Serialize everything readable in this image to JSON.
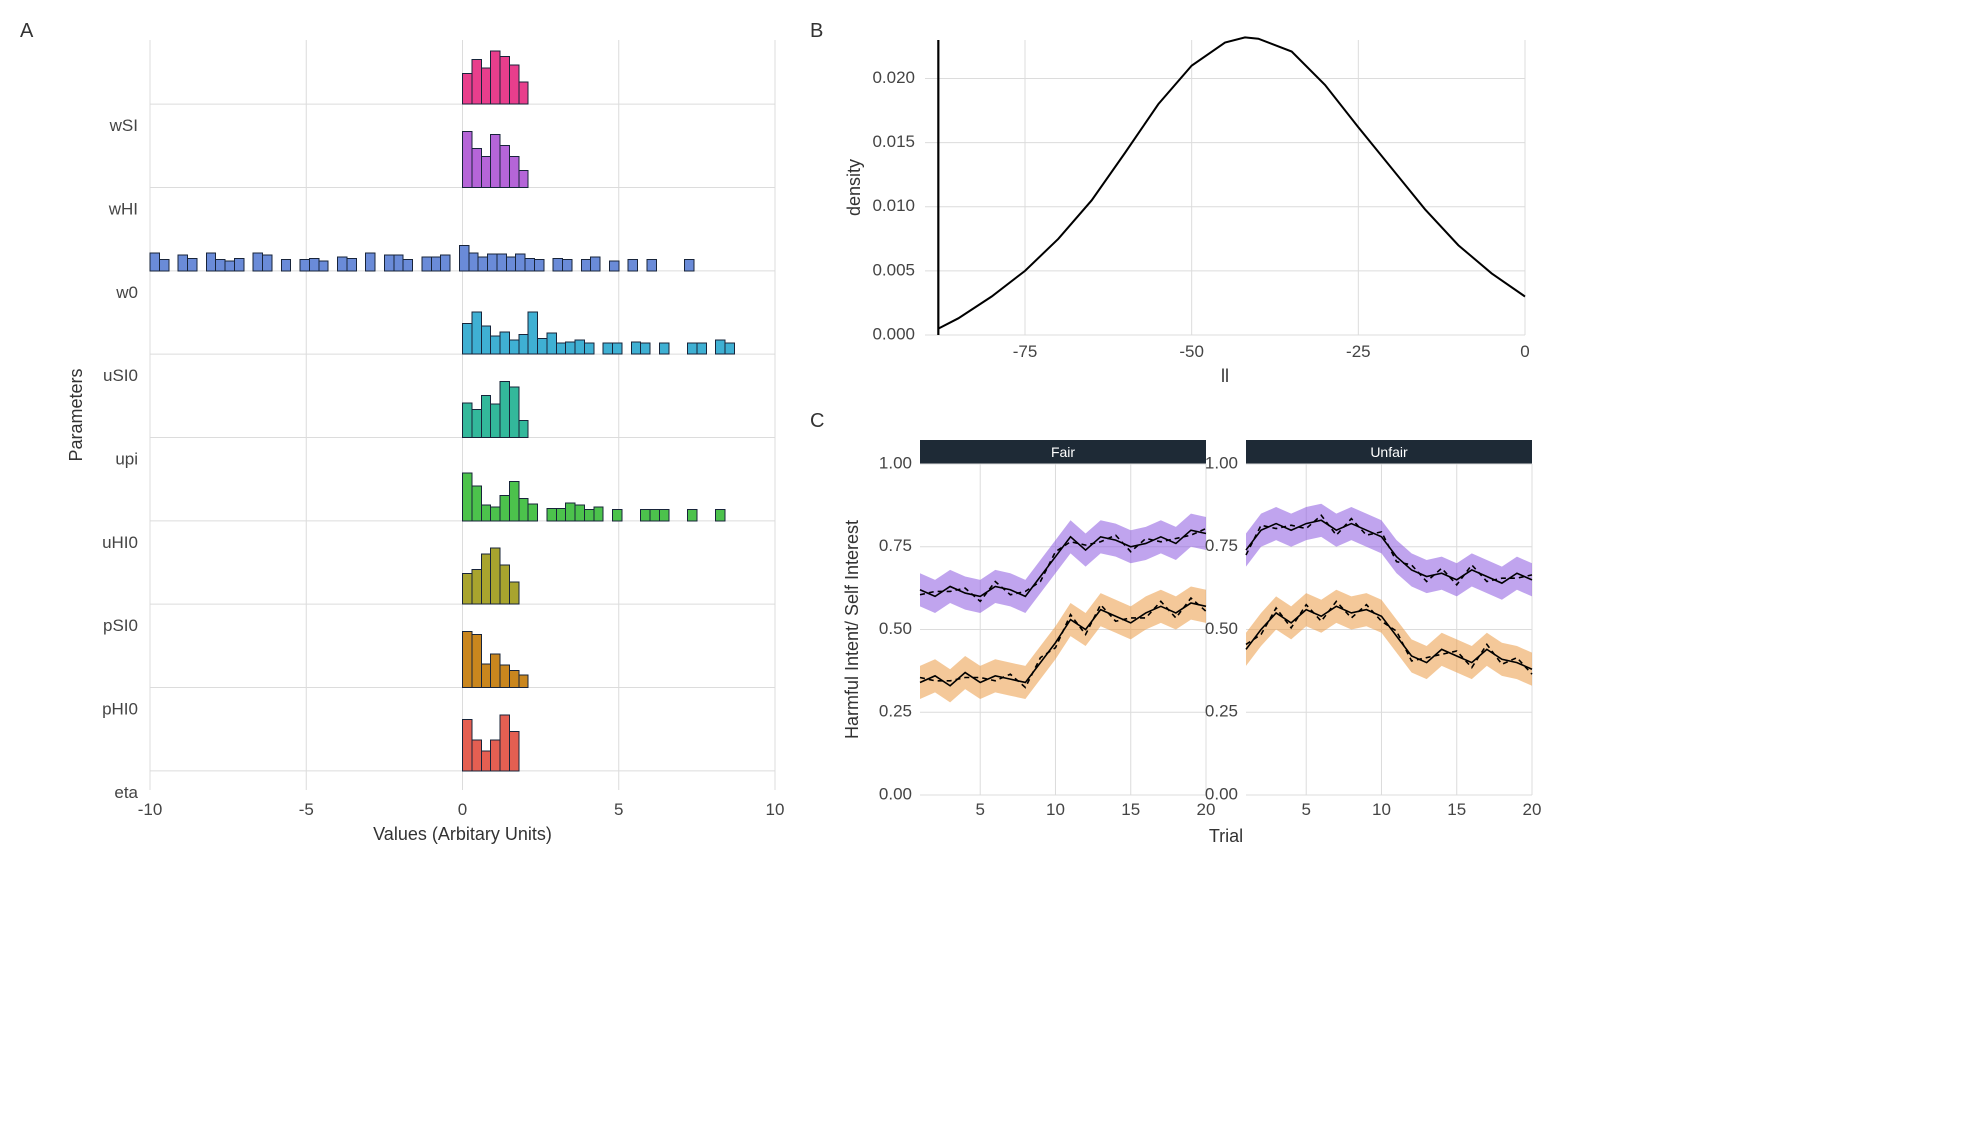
{
  "labels": {
    "panelA": "A",
    "panelB": "B",
    "panelC": "C",
    "paramsX": "Values (Arbitary Units)",
    "paramsY": "Parameters",
    "densX": "ll",
    "densY": "density",
    "facetX": "Trial",
    "facetY": "Harmful Intent/ Self Interest",
    "facetFair": "Fair",
    "facetUnfair": "Unfair"
  },
  "panelA": {
    "xlim": [
      -10,
      10
    ],
    "xticks": [
      -10,
      -5,
      0,
      5,
      10
    ],
    "parameters": [
      "wSI",
      "wHI",
      "w0",
      "uSI0",
      "upi",
      "uHI0",
      "pSI0",
      "pHI0",
      "eta"
    ],
    "colors": {
      "wSI": "#e83e8c",
      "wHI": "#b565d8",
      "w0": "#6a8bd8",
      "uSI0": "#3fb0d3",
      "upi": "#33b89b",
      "uHI0": "#4cc24c",
      "pSI0": "#a8a42e",
      "pHI0": "#c9861e",
      "eta": "#e45f52"
    },
    "hist_stroke": "#18243a",
    "bin_width": 0.3,
    "row_maxh": 56,
    "histograms": {
      "wSI": {
        "start": 0.0,
        "vals": [
          0.55,
          0.8,
          0.65,
          0.95,
          0.85,
          0.7,
          0.4
        ]
      },
      "wHI": {
        "start": 0.0,
        "vals": [
          1.0,
          0.7,
          0.55,
          0.95,
          0.75,
          0.55,
          0.3
        ]
      },
      "w0": {
        "start": -10.0,
        "vals": [
          0.32,
          0.2,
          0.0,
          0.28,
          0.22,
          0.0,
          0.32,
          0.2,
          0.18,
          0.22,
          0.0,
          0.32,
          0.28,
          0.0,
          0.2,
          0.0,
          0.2,
          0.22,
          0.18,
          0.0,
          0.25,
          0.22,
          0.0,
          0.32,
          0.0,
          0.28,
          0.28,
          0.2,
          0.0,
          0.25,
          0.25,
          0.28,
          0.0,
          0.45,
          0.32,
          0.25,
          0.3,
          0.3,
          0.25,
          0.3,
          0.22,
          0.2,
          0.0,
          0.22,
          0.2,
          0.0,
          0.2,
          0.25,
          0.0,
          0.18,
          0.0,
          0.2,
          0.0,
          0.2,
          0.0,
          0.0,
          0.0,
          0.2
        ]
      },
      "uSI0": {
        "start": 0.0,
        "vals": [
          0.55,
          0.75,
          0.5,
          0.32,
          0.4,
          0.25,
          0.35,
          0.75,
          0.28,
          0.38,
          0.2,
          0.22,
          0.25,
          0.2,
          0.0,
          0.2,
          0.2,
          0.0,
          0.22,
          0.2,
          0.0,
          0.2,
          0.0,
          0.0,
          0.2,
          0.2,
          0.0,
          0.25,
          0.2
        ]
      },
      "upi": {
        "start": 0.0,
        "vals": [
          0.62,
          0.5,
          0.75,
          0.6,
          1.0,
          0.9,
          0.3
        ]
      },
      "uHI0": {
        "start": 0.0,
        "vals": [
          0.85,
          0.62,
          0.28,
          0.25,
          0.45,
          0.7,
          0.4,
          0.3,
          0.0,
          0.22,
          0.22,
          0.32,
          0.28,
          0.2,
          0.25,
          0.0,
          0.2,
          0.0,
          0.0,
          0.2,
          0.2,
          0.2,
          0.0,
          0.0,
          0.2,
          0.0,
          0.0,
          0.2
        ]
      },
      "pSI0": {
        "start": 0.0,
        "vals": [
          0.55,
          0.62,
          0.9,
          1.0,
          0.7,
          0.4
        ]
      },
      "pHI0": {
        "start": 0.0,
        "vals": [
          1.0,
          0.95,
          0.42,
          0.6,
          0.4,
          0.3,
          0.22
        ]
      },
      "eta": {
        "start": 0.0,
        "vals": [
          0.92,
          0.55,
          0.35,
          0.55,
          1.0,
          0.7
        ]
      }
    },
    "grid_color": "#dcdcdc",
    "background": "#ffffff",
    "label_fontsize": 18,
    "tick_fontsize": 17
  },
  "panelB": {
    "xlim": [
      -90,
      0
    ],
    "xticks": [
      -75,
      -50,
      -25,
      0
    ],
    "ylim": [
      0,
      0.023
    ],
    "yticks": [
      0.0,
      0.005,
      0.01,
      0.015,
      0.02
    ],
    "curve_stroke": "#000000",
    "curve_width": 2,
    "vline_x": -88,
    "curve": [
      [
        -88,
        0.0005
      ],
      [
        -85,
        0.0013
      ],
      [
        -80,
        0.003
      ],
      [
        -75,
        0.005
      ],
      [
        -70,
        0.0075
      ],
      [
        -65,
        0.0105
      ],
      [
        -60,
        0.0142
      ],
      [
        -55,
        0.018
      ],
      [
        -50,
        0.021
      ],
      [
        -45,
        0.0228
      ],
      [
        -42,
        0.0232
      ],
      [
        -40,
        0.0231
      ],
      [
        -35,
        0.0221
      ],
      [
        -30,
        0.0195
      ],
      [
        -25,
        0.0162
      ],
      [
        -20,
        0.013
      ],
      [
        -15,
        0.0098
      ],
      [
        -10,
        0.007
      ],
      [
        -5,
        0.0048
      ],
      [
        0,
        0.003
      ]
    ],
    "grid_color": "#dcdcdc",
    "background": "#ffffff"
  },
  "panelC": {
    "xlim": [
      1,
      20
    ],
    "xticks": [
      5,
      10,
      15,
      20
    ],
    "ylim": [
      0,
      1
    ],
    "yticks": [
      0.0,
      0.25,
      0.5,
      0.75,
      1.0
    ],
    "strip_bg": "#1e2a36",
    "strip_text": "#ffffff",
    "color_purple": "#7b3fd1",
    "fill_purple": "#8d5ae0",
    "color_orange": "#e07a1f",
    "fill_orange": "#eb9a46",
    "ribbon_opacity": 0.55,
    "line_stroke": "#000000",
    "dash_stroke": "#000000",
    "fair": {
      "purple": [
        0.62,
        0.6,
        0.63,
        0.61,
        0.6,
        0.63,
        0.62,
        0.6,
        0.66,
        0.72,
        0.78,
        0.74,
        0.78,
        0.77,
        0.75,
        0.76,
        0.78,
        0.76,
        0.8,
        0.79
      ],
      "orange": [
        0.34,
        0.36,
        0.33,
        0.37,
        0.34,
        0.36,
        0.35,
        0.34,
        0.4,
        0.46,
        0.53,
        0.5,
        0.56,
        0.54,
        0.52,
        0.55,
        0.57,
        0.55,
        0.58,
        0.57
      ]
    },
    "unfair": {
      "purple": [
        0.74,
        0.8,
        0.82,
        0.8,
        0.82,
        0.83,
        0.8,
        0.82,
        0.8,
        0.78,
        0.72,
        0.68,
        0.66,
        0.67,
        0.65,
        0.68,
        0.66,
        0.64,
        0.67,
        0.65
      ],
      "orange": [
        0.44,
        0.5,
        0.55,
        0.52,
        0.56,
        0.54,
        0.57,
        0.55,
        0.56,
        0.54,
        0.48,
        0.42,
        0.4,
        0.44,
        0.42,
        0.4,
        0.44,
        0.41,
        0.4,
        0.38
      ]
    },
    "ribbon_half": 0.05
  }
}
